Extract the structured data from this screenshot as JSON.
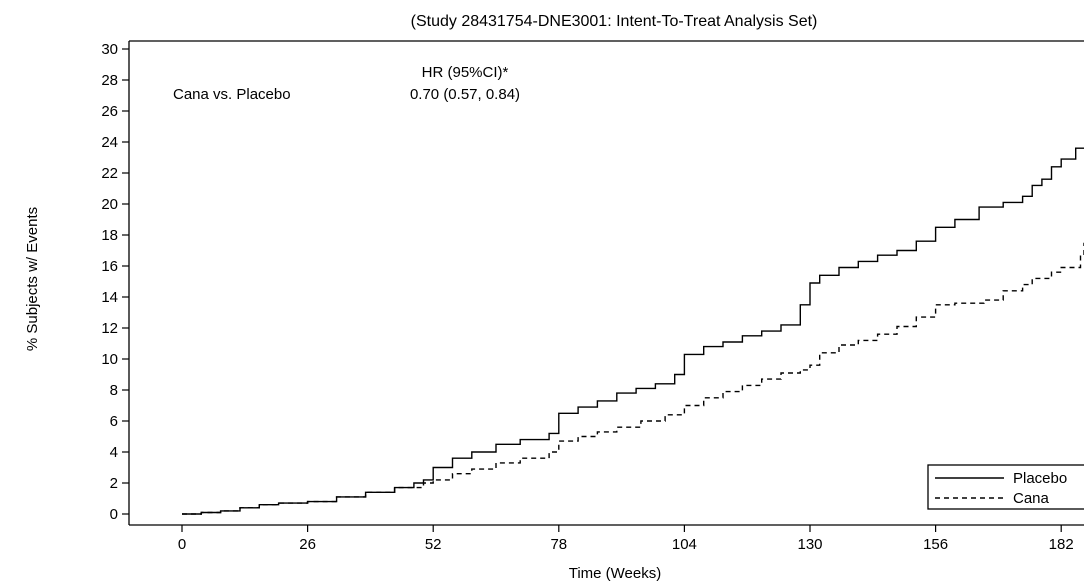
{
  "chart_data": {
    "type": "line",
    "title": "(Study 28431754-DNE3001: Intent-To-Treat Analysis Set)",
    "xlabel": "Time (Weeks)",
    "ylabel": "% Subjects w/ Events",
    "xlim": [
      0,
      188
    ],
    "ylim": [
      0,
      30
    ],
    "xticks": [
      0,
      26,
      52,
      78,
      104,
      130,
      156,
      182
    ],
    "yticks": [
      0,
      2,
      4,
      6,
      8,
      10,
      12,
      14,
      16,
      18,
      20,
      22,
      24,
      26,
      28,
      30
    ],
    "grid": false,
    "legend_position": "bottom-right",
    "annotation": {
      "header": "HR (95%CI)*",
      "comparison": "Cana vs. Placebo",
      "value": "0.70 (0.57, 0.84)"
    },
    "series": [
      {
        "name": "Placebo",
        "style": "solid",
        "x": [
          0,
          4,
          8,
          12,
          16,
          20,
          26,
          32,
          38,
          44,
          48,
          50,
          52,
          56,
          60,
          65,
          70,
          76,
          78,
          82,
          86,
          90,
          94,
          98,
          102,
          104,
          108,
          112,
          116,
          120,
          124,
          128,
          130,
          132,
          136,
          140,
          144,
          148,
          152,
          156,
          160,
          165,
          170,
          174,
          176,
          178,
          180,
          182,
          185,
          188
        ],
        "y": [
          0,
          0.1,
          0.2,
          0.4,
          0.6,
          0.7,
          0.8,
          1.1,
          1.4,
          1.7,
          2.0,
          2.2,
          3.0,
          3.6,
          4.0,
          4.5,
          4.8,
          5.2,
          6.5,
          6.9,
          7.3,
          7.8,
          8.1,
          8.4,
          9.0,
          10.3,
          10.8,
          11.1,
          11.5,
          11.8,
          12.2,
          13.5,
          14.9,
          15.4,
          15.9,
          16.3,
          16.7,
          17.0,
          17.6,
          18.5,
          19.0,
          19.8,
          20.1,
          20.5,
          21.2,
          21.6,
          22.4,
          22.9,
          23.6,
          23.6
        ]
      },
      {
        "name": "Cana",
        "style": "dashed",
        "x": [
          0,
          4,
          8,
          12,
          16,
          20,
          26,
          32,
          38,
          44,
          50,
          52,
          56,
          60,
          65,
          70,
          76,
          78,
          82,
          86,
          90,
          95,
          100,
          104,
          108,
          112,
          116,
          120,
          124,
          128,
          130,
          132,
          136,
          140,
          144,
          148,
          152,
          156,
          160,
          166,
          170,
          174,
          176,
          180,
          182,
          186,
          188
        ],
        "y": [
          0,
          0.1,
          0.2,
          0.4,
          0.6,
          0.7,
          0.8,
          1.1,
          1.4,
          1.7,
          2.0,
          2.2,
          2.6,
          2.9,
          3.3,
          3.6,
          4.0,
          4.7,
          5.0,
          5.3,
          5.6,
          6.0,
          6.4,
          7.0,
          7.5,
          7.9,
          8.3,
          8.7,
          9.1,
          9.3,
          9.6,
          10.4,
          10.9,
          11.2,
          11.6,
          12.1,
          12.7,
          13.5,
          13.6,
          13.8,
          14.4,
          14.8,
          15.2,
          15.6,
          15.9,
          16.7,
          17.5
        ]
      }
    ]
  }
}
